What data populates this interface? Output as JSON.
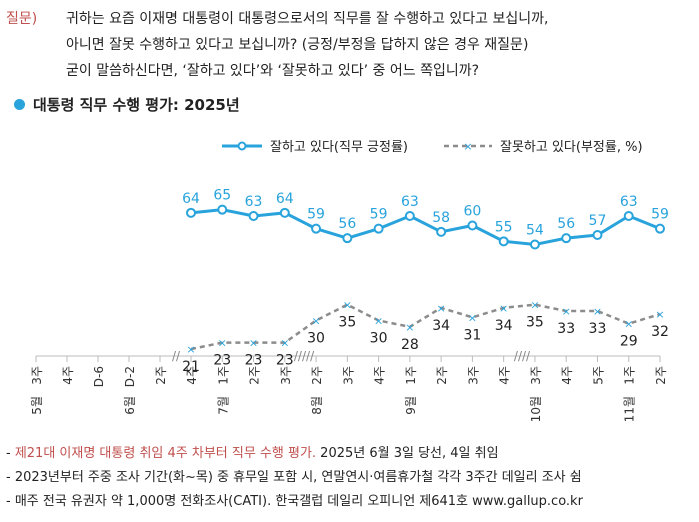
{
  "question": {
    "label": "질문)",
    "lines": [
      "귀하는 요즘 이재명 대통령이 대통령으로서의 직무를 잘 수행하고 있다고 보십니까,",
      "아니면 잘못 수행하고 있다고 보십니까? (긍정/부정을 답하지 않은 경우 재질문)",
      "굳이 말씀하신다면, ‘잘하고 있다’와 ‘잘못하고 있다’ 중 어느 쪽입니까?"
    ]
  },
  "section_title": "대통령 직무 수행 평가: 2025년",
  "chart_data": {
    "type": "line",
    "categories": [
      {
        "week": "4주",
        "month": ""
      },
      {
        "week": "1주",
        "month": "7월"
      },
      {
        "week": "2주",
        "month": ""
      },
      {
        "week": "3주",
        "month": ""
      },
      {
        "week": "2주",
        "month": "8월"
      },
      {
        "week": "3주",
        "month": ""
      },
      {
        "week": "4주",
        "month": ""
      },
      {
        "week": "1주",
        "month": "9월"
      },
      {
        "week": "2주",
        "month": ""
      },
      {
        "week": "3주",
        "month": ""
      },
      {
        "week": "4주",
        "month": ""
      },
      {
        "week": "3주",
        "month": "10월"
      },
      {
        "week": "4주",
        "month": ""
      },
      {
        "week": "5주",
        "month": ""
      },
      {
        "week": "1주",
        "month": "11월"
      },
      {
        "week": "2주",
        "month": ""
      }
    ],
    "pre_ticks": [
      {
        "week": "3주",
        "month": "5월"
      },
      {
        "week": "4주",
        "month": ""
      },
      {
        "week": "D-6",
        "month": ""
      },
      {
        "week": "D-2",
        "month": "6월"
      },
      {
        "week": "2주",
        "month": ""
      }
    ],
    "axis_breaks": [
      "//",
      "/////",
      "////"
    ],
    "series": [
      {
        "name": "잘하고 있다(직무 긍정률)",
        "color": "#29a3dc",
        "values": [
          64,
          65,
          63,
          64,
          59,
          56,
          59,
          63,
          58,
          60,
          55,
          54,
          56,
          57,
          63,
          59
        ]
      },
      {
        "name": "잘못하고 있다(부정률, %)",
        "color": "#8c8c8c",
        "values": [
          21,
          23,
          23,
          23,
          30,
          35,
          30,
          28,
          34,
          31,
          34,
          35,
          33,
          33,
          29,
          32
        ]
      }
    ],
    "ylim": [
      15,
      75
    ],
    "grid": false,
    "legend_position": "top-right"
  },
  "footnotes": [
    {
      "dash": "- ",
      "text": "제21대 이재명 대통령 취임 4주 차부터 직무 수행 평가.",
      "tail": " 2025년 6월 3일 당선, 4일 취임"
    },
    {
      "dash": "- ",
      "text": "",
      "tail": "2023년부터 주중 조사 기간(화~목) 중 휴무일 포함 시, 연말연시·여름휴가철 각각 3주간 데일리 조사 쉼"
    },
    {
      "dash": "- ",
      "text": "",
      "tail": "매주 전국 유권자 약 1,000명 전화조사(CATI). 한국갤럽 데일리 오피니언 제641호 www.gallup.co.kr"
    }
  ]
}
